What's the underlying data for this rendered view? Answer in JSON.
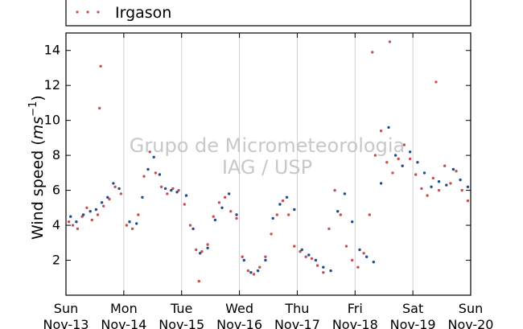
{
  "chart_data": {
    "type": "scatter",
    "title": "",
    "xlabel": "",
    "ylabel": "Wind speed (ms⁻¹)",
    "ylabel_text": "Wind speed (",
    "ylabel_unit_base": "ms",
    "ylabel_unit_exp": "−1",
    "ylabel_close": ")",
    "ylim": [
      0,
      15
    ],
    "xlim": [
      0,
      7
    ],
    "grid": "vertical",
    "legend_placement": "top",
    "watermark": [
      "Grupo de Micrometeorologia",
      "IAG / USP"
    ],
    "yticks": [
      2,
      4,
      6,
      8,
      10,
      12,
      14
    ],
    "xticks": [
      {
        "pos": 0,
        "day": "Sun",
        "date": "Nov-13"
      },
      {
        "pos": 1,
        "day": "Mon",
        "date": "Nov-14"
      },
      {
        "pos": 2,
        "day": "Tue",
        "date": "Nov-15"
      },
      {
        "pos": 3,
        "day": "Wed",
        "date": "Nov-16"
      },
      {
        "pos": 4,
        "day": "Thu",
        "date": "Nov-17"
      },
      {
        "pos": 5,
        "day": "Fri",
        "date": "Nov-18"
      },
      {
        "pos": 6,
        "day": "Sat",
        "date": "Nov-19"
      },
      {
        "pos": 7,
        "day": "Sun",
        "date": "Nov-20"
      }
    ],
    "series": [
      {
        "name": "Irgason",
        "color": "#c9504f",
        "x": [
          0.05,
          0.12,
          0.2,
          0.28,
          0.36,
          0.45,
          0.55,
          0.65,
          0.75,
          0.85,
          0.95,
          1.05,
          1.15,
          1.25,
          1.35,
          1.45,
          1.55,
          1.65,
          1.75,
          1.85,
          1.95,
          2.05,
          2.15,
          2.25,
          2.35,
          2.45,
          2.55,
          2.65,
          2.75,
          2.85,
          2.95,
          3.05,
          3.15,
          3.25,
          3.35,
          3.45,
          3.55,
          3.65,
          3.75,
          3.85,
          3.95,
          4.05,
          4.15,
          4.25,
          4.35,
          4.45,
          4.55,
          4.65,
          4.75,
          4.85,
          4.95,
          5.05,
          5.15,
          5.25,
          5.35,
          5.45,
          5.55,
          5.65,
          5.75,
          5.85,
          5.95,
          6.05,
          6.15,
          6.25,
          6.35,
          6.45,
          6.55,
          6.65,
          6.75,
          6.85,
          6.95,
          0.58,
          0.6,
          2.3,
          5.3,
          5.6,
          6.4
        ],
        "y": [
          4.2,
          4.0,
          3.8,
          4.5,
          5.0,
          4.3,
          4.6,
          5.1,
          5.5,
          6.2,
          5.8,
          4.0,
          3.8,
          4.6,
          6.8,
          8.2,
          7.0,
          6.2,
          5.8,
          6.1,
          6.0,
          5.2,
          4.0,
          2.6,
          2.5,
          2.9,
          4.5,
          5.3,
          5.6,
          4.8,
          4.4,
          2.2,
          1.4,
          1.2,
          1.6,
          2.2,
          3.5,
          4.6,
          5.4,
          4.6,
          2.8,
          2.5,
          2.2,
          2.1,
          1.7,
          1.3,
          3.8,
          6.0,
          4.6,
          2.8,
          2.0,
          1.6,
          2.4,
          4.6,
          8.0,
          9.4,
          7.6,
          7.0,
          7.8,
          8.6,
          7.8,
          6.9,
          6.1,
          5.7,
          6.7,
          6.0,
          7.4,
          6.4,
          7.1,
          6.0,
          5.4,
          10.7,
          13.1,
          0.8,
          13.9,
          14.5,
          12.2
        ]
      },
      {
        "name": "",
        "color": "#1f4e8a",
        "x": [
          0.08,
          0.18,
          0.3,
          0.42,
          0.52,
          0.62,
          0.72,
          0.82,
          0.92,
          1.1,
          1.22,
          1.32,
          1.42,
          1.52,
          1.62,
          1.72,
          1.82,
          1.92,
          2.08,
          2.2,
          2.32,
          2.45,
          2.58,
          2.7,
          2.82,
          2.95,
          3.08,
          3.2,
          3.32,
          3.45,
          3.58,
          3.7,
          3.82,
          3.95,
          4.08,
          4.2,
          4.32,
          4.45,
          4.58,
          4.7,
          4.82,
          4.95,
          5.08,
          5.2,
          5.32,
          5.45,
          5.58,
          5.7,
          5.82,
          5.95,
          6.08,
          6.2,
          6.32,
          6.45,
          6.58,
          6.7,
          6.82,
          6.95
        ],
        "y": [
          4.5,
          4.2,
          4.6,
          4.8,
          4.9,
          5.3,
          5.6,
          6.4,
          6.1,
          4.2,
          4.1,
          5.6,
          7.2,
          7.9,
          6.9,
          6.1,
          6.0,
          5.9,
          5.7,
          3.8,
          2.4,
          2.7,
          4.3,
          5.0,
          5.8,
          4.6,
          2.0,
          1.3,
          1.4,
          2.0,
          4.4,
          5.2,
          5.6,
          4.9,
          2.6,
          2.3,
          2.0,
          1.6,
          1.4,
          4.8,
          5.8,
          4.2,
          2.6,
          2.2,
          1.9,
          6.4,
          9.6,
          8.0,
          7.4,
          8.2,
          7.6,
          7.0,
          6.2,
          6.5,
          6.3,
          7.2,
          6.6,
          6.2
        ]
      }
    ]
  }
}
